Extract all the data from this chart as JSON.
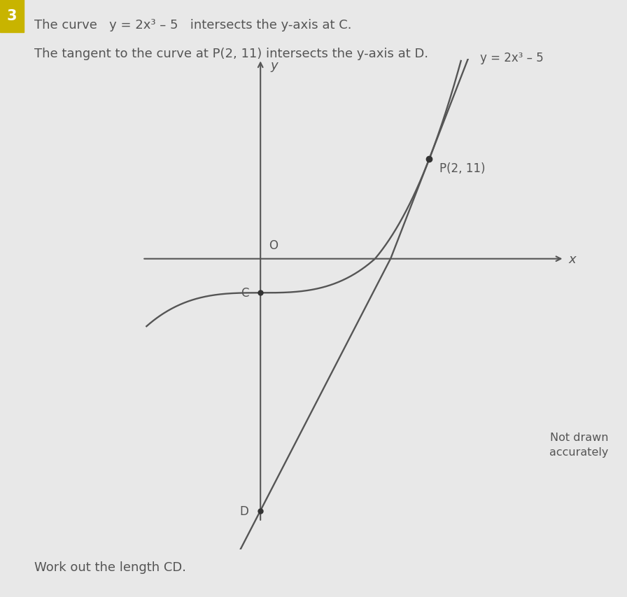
{
  "background_color": "#e8e8e8",
  "white_area_color": "#e0e0e0",
  "text_color": "#555555",
  "title_line1": "The curve   y = 2x³ – 5   intersects the y-axis at C.",
  "title_line2": "The tangent to the curve at P(2, 11) intersects the y-axis at D.",
  "curve_equation_label": "y = 2x³ – 5",
  "point_P_label": "P(2, 11)",
  "point_C_label": "C",
  "point_D_label": "D",
  "origin_label": "O",
  "x_label": "x",
  "y_label": "y",
  "not_drawn_text": "Not drawn\naccurately",
  "work_out_text": "Work out the length CD.",
  "footnote_number": "3",
  "badge_color": "#c8b400",
  "axis_color": "#555555",
  "curve_color": "#555555",
  "tangent_color": "#555555",
  "point_color": "#333333",
  "figsize": [
    8.96,
    8.54
  ],
  "dpi": 100
}
